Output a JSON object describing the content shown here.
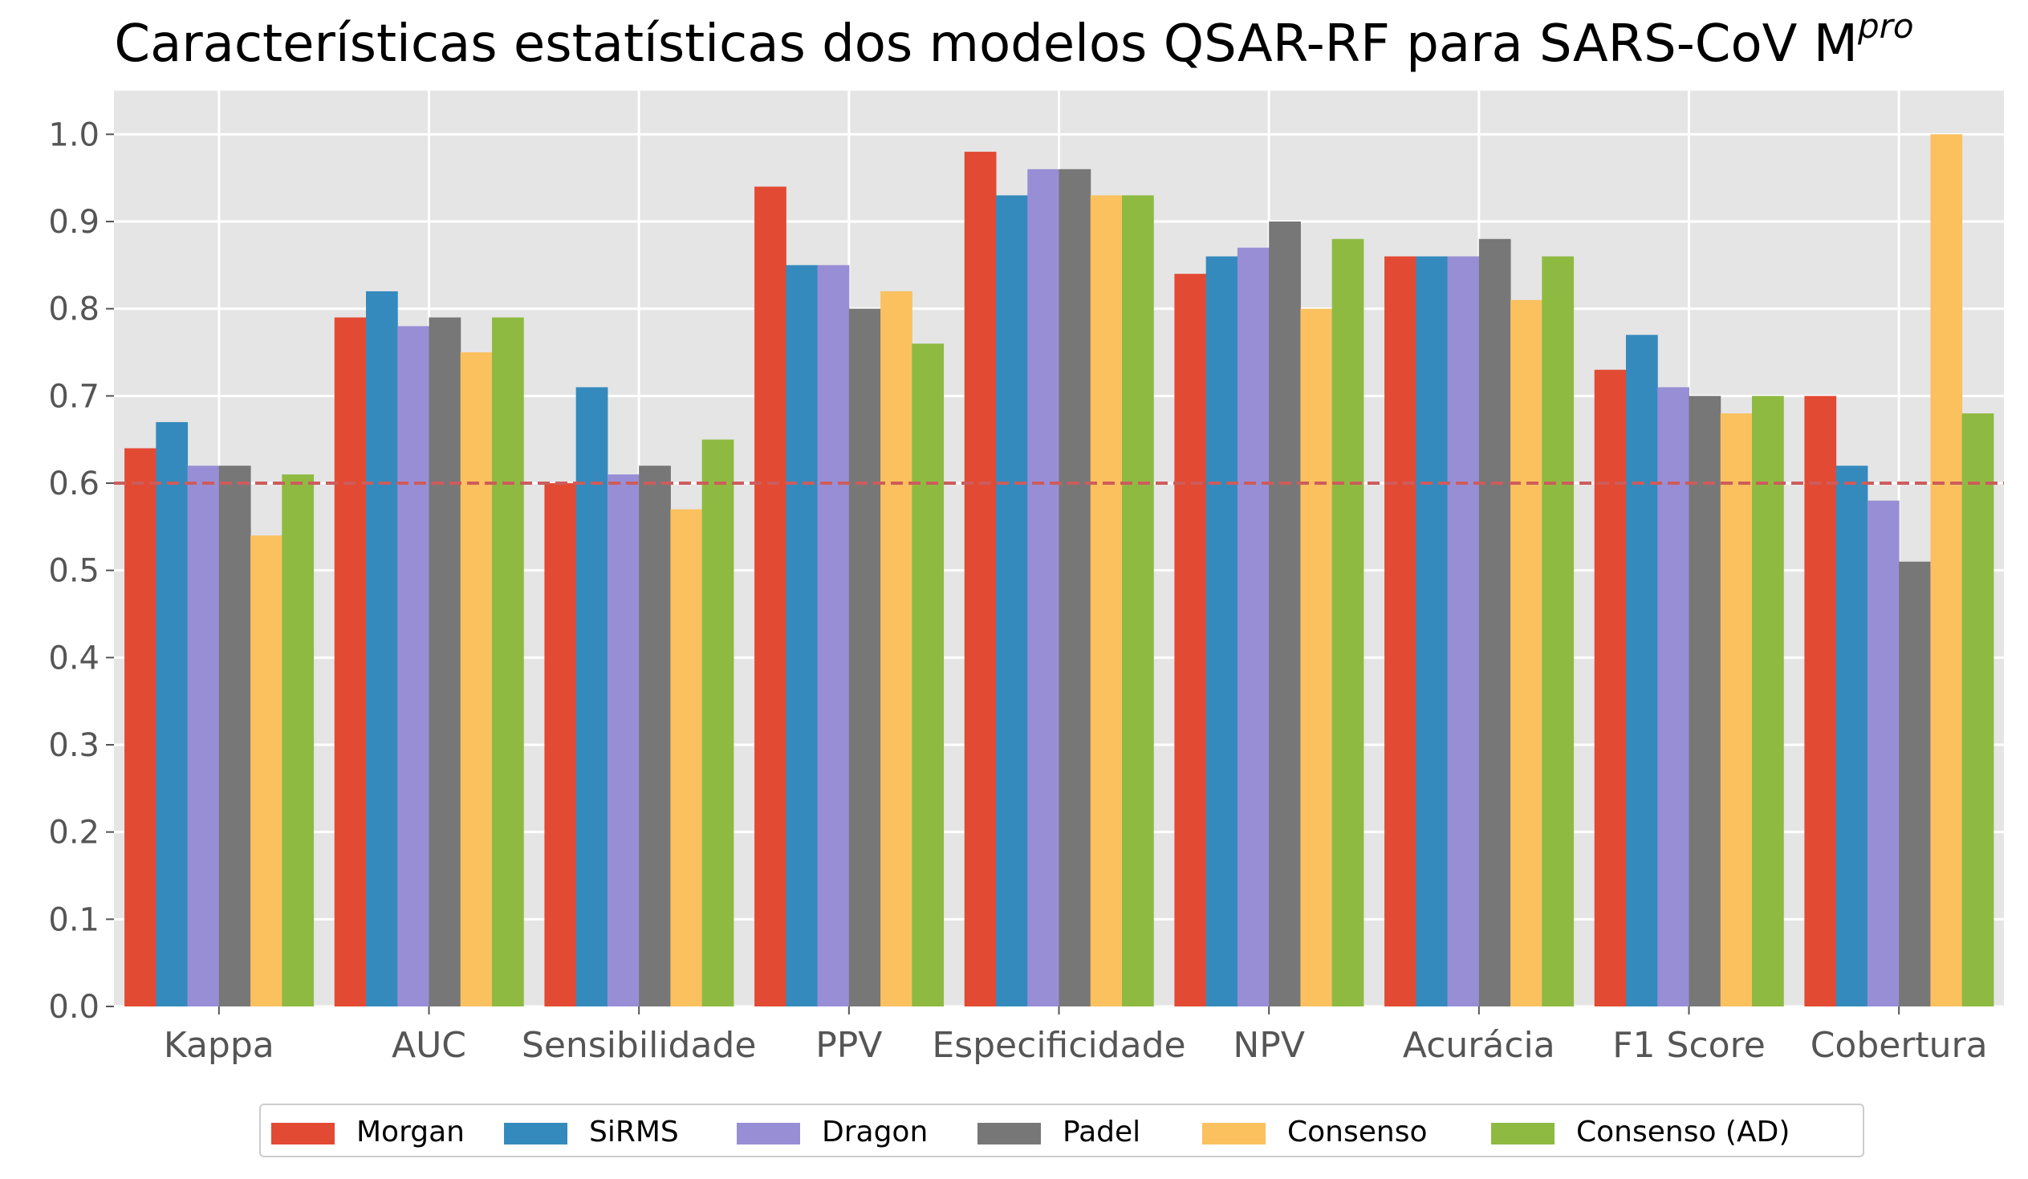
{
  "chart_data": {
    "type": "bar",
    "title": "Características estatísticas dos modelos QSAR-RF para SARS-CoV M",
    "title_superscript": "pro",
    "xlabel": "",
    "ylabel": "",
    "categories": [
      "Kappa",
      "AUC",
      "Sensibilidade",
      "PPV",
      "Especificidade",
      "NPV",
      "Acurácia",
      "F1 Score",
      "Cobertura"
    ],
    "series": [
      {
        "name": "Morgan",
        "color": "#E24A33",
        "values": [
          0.64,
          0.79,
          0.6,
          0.94,
          0.98,
          0.84,
          0.86,
          0.73,
          0.7
        ]
      },
      {
        "name": "SiRMS",
        "color": "#348ABD",
        "values": [
          0.67,
          0.82,
          0.71,
          0.85,
          0.93,
          0.86,
          0.86,
          0.77,
          0.62
        ]
      },
      {
        "name": "Dragon",
        "color": "#988ED5",
        "values": [
          0.62,
          0.78,
          0.61,
          0.85,
          0.96,
          0.87,
          0.86,
          0.71,
          0.58
        ]
      },
      {
        "name": "Padel",
        "color": "#777777",
        "values": [
          0.62,
          0.79,
          0.62,
          0.8,
          0.96,
          0.9,
          0.88,
          0.7,
          0.51
        ]
      },
      {
        "name": "Consenso",
        "color": "#FBC15E",
        "values": [
          0.54,
          0.75,
          0.57,
          0.82,
          0.93,
          0.8,
          0.81,
          0.68,
          1.0
        ]
      },
      {
        "name": "Consenso (AD)",
        "color": "#8EBA42",
        "values": [
          0.61,
          0.79,
          0.65,
          0.76,
          0.93,
          0.88,
          0.86,
          0.7,
          0.68
        ]
      }
    ],
    "ylim": [
      0,
      1.05
    ],
    "yticks": [
      "0.0",
      "0.1",
      "0.2",
      "0.3",
      "0.4",
      "0.5",
      "0.6",
      "0.7",
      "0.8",
      "0.9",
      "1.0"
    ],
    "reference_line": {
      "y": 0.6,
      "style": "dashed",
      "color": "#CD5C5C"
    },
    "grid": true,
    "background": "#E5E5E5",
    "legend_position": "bottom-center"
  }
}
